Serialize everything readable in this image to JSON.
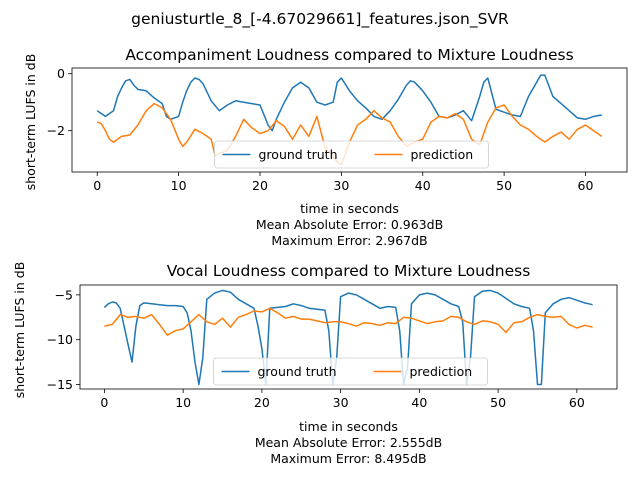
{
  "figure": {
    "suptitle": "geniusturtle_8_[-4.67029661]_features.json_SVR"
  },
  "colors": {
    "ground_truth": "#1f77b4",
    "prediction": "#ff7f0e"
  },
  "chart_data": [
    {
      "type": "line",
      "title": "Accompaniment Loudness compared to Mixture Loudness",
      "xlabel": "time in seconds",
      "ylabel": "short-term LUFS in dB",
      "xlim": [
        -3.1,
        65.1
      ],
      "ylim": [
        -3.45,
        0.2
      ],
      "xticks": [
        "0",
        "10",
        "20",
        "30",
        "40",
        "50",
        "60"
      ],
      "yticks": [
        "0",
        "-2"
      ],
      "legend": {
        "entries": [
          "ground truth",
          "prediction"
        ],
        "location": "lower center"
      },
      "annotations": [
        "Mean Absolute Error: 0.963dB",
        "Maximum Error: 2.967dB"
      ],
      "series": [
        {
          "name": "ground truth",
          "x": [
            0,
            1,
            2,
            2.5,
            3,
            3.5,
            4,
            4.5,
            5,
            6,
            7,
            8,
            8.5,
            9,
            10,
            10.5,
            11,
            11.5,
            12,
            12.5,
            13,
            14,
            15,
            16,
            17,
            18,
            19,
            20,
            21,
            21.5,
            22,
            23,
            24,
            25,
            26,
            27,
            28,
            29,
            29.5,
            30,
            31,
            32,
            33,
            34,
            35,
            36,
            37,
            38,
            38.5,
            39,
            40,
            41,
            42,
            43,
            44,
            45,
            46,
            47,
            47.5,
            48,
            49,
            50,
            51,
            52,
            53,
            54,
            54.5,
            55,
            56,
            57,
            58,
            59,
            60,
            61,
            62
          ],
          "values": [
            -1.3,
            -1.5,
            -1.3,
            -0.8,
            -0.5,
            -0.25,
            -0.2,
            -0.4,
            -0.55,
            -0.6,
            -0.85,
            -1.05,
            -1.5,
            -1.6,
            -1.5,
            -1.0,
            -0.6,
            -0.3,
            -0.15,
            -0.2,
            -0.35,
            -0.95,
            -1.3,
            -1.1,
            -0.95,
            -1.0,
            -1.05,
            -1.1,
            -1.8,
            -2.0,
            -1.6,
            -1.0,
            -0.5,
            -0.3,
            -0.5,
            -1.0,
            -1.1,
            -1.0,
            -0.3,
            -0.15,
            -0.6,
            -0.95,
            -1.2,
            -1.5,
            -1.6,
            -1.3,
            -0.9,
            -0.4,
            -0.25,
            -0.3,
            -0.6,
            -1.0,
            -1.5,
            -1.55,
            -1.45,
            -1.3,
            -1.65,
            -0.8,
            -0.3,
            -0.15,
            -1.25,
            -1.35,
            -1.45,
            -1.5,
            -0.8,
            -0.3,
            -0.05,
            -0.05,
            -0.8,
            -1.05,
            -1.3,
            -1.55,
            -1.6,
            -1.5,
            -1.45
          ]
        },
        {
          "name": "prediction",
          "x": [
            0,
            0.5,
            1,
            1.5,
            2,
            3,
            4,
            5,
            6,
            7,
            8,
            9,
            10,
            10.5,
            11,
            12,
            13,
            14,
            14.5,
            15,
            16,
            17,
            18,
            19,
            20,
            21,
            22,
            23,
            24,
            25,
            26,
            27,
            28,
            29,
            29.5,
            30,
            30.5,
            31,
            32,
            33,
            34,
            35,
            36,
            37,
            38,
            39,
            40,
            41,
            42,
            43,
            44,
            45,
            46,
            47,
            48,
            49,
            50,
            51,
            52,
            53,
            54,
            55,
            56,
            57,
            58,
            59,
            60,
            61,
            62
          ],
          "values": [
            -1.7,
            -1.75,
            -2.0,
            -2.3,
            -2.4,
            -2.2,
            -2.15,
            -1.8,
            -1.3,
            -1.05,
            -1.2,
            -1.6,
            -2.3,
            -2.55,
            -2.4,
            -1.95,
            -2.1,
            -2.3,
            -2.9,
            -2.8,
            -2.7,
            -2.2,
            -1.6,
            -1.9,
            -2.1,
            -2.0,
            -1.65,
            -1.85,
            -2.3,
            -1.8,
            -2.2,
            -1.5,
            -2.6,
            -2.9,
            -3.1,
            -3.2,
            -2.8,
            -2.4,
            -1.8,
            -1.6,
            -1.3,
            -1.55,
            -1.7,
            -2.2,
            -2.55,
            -2.4,
            -2.3,
            -1.7,
            -1.5,
            -1.55,
            -1.4,
            -1.6,
            -2.3,
            -2.5,
            -1.7,
            -1.2,
            -1.1,
            -1.5,
            -1.8,
            -1.95,
            -2.2,
            -2.4,
            -2.2,
            -2.05,
            -2.3,
            -1.95,
            -1.8,
            -2.0,
            -2.2
          ]
        }
      ]
    },
    {
      "type": "line",
      "title": "Vocal Loudness compared to Mixture Loudness",
      "xlabel": "time in seconds",
      "ylabel": "short-term LUFS in dB",
      "xlim": [
        -3.1,
        65.1
      ],
      "ylim": [
        -15.5,
        -3.9
      ],
      "xticks": [
        "0",
        "10",
        "20",
        "30",
        "40",
        "50",
        "60"
      ],
      "yticks": [
        "-5",
        "-10",
        "-15"
      ],
      "legend": {
        "entries": [
          "ground truth",
          "prediction"
        ],
        "location": "lower center"
      },
      "annotations": [
        "Mean Absolute Error: 2.555dB",
        "Maximum Error: 8.495dB"
      ],
      "series": [
        {
          "name": "ground truth",
          "x": [
            0,
            0.5,
            1,
            1.5,
            2,
            2.5,
            3,
            3.5,
            4,
            4.5,
            5,
            6,
            7,
            8,
            9,
            10,
            10.5,
            11,
            11.5,
            12,
            12.5,
            13,
            14,
            15,
            16,
            17,
            18,
            19,
            19.5,
            20,
            20.5,
            21,
            22,
            23,
            24,
            25,
            26,
            27,
            28,
            28.5,
            29,
            29.5,
            30,
            31,
            32,
            33,
            34,
            35,
            36,
            37,
            37.5,
            38,
            38.5,
            39,
            40,
            41,
            42,
            43,
            44,
            45,
            45.5,
            46,
            46.5,
            47,
            48,
            49,
            50,
            51,
            52,
            53,
            54,
            54.5,
            55,
            55.5,
            56,
            57,
            58,
            59,
            60,
            61,
            62
          ],
          "values": [
            -6.4,
            -6.0,
            -5.8,
            -5.9,
            -6.5,
            -8.5,
            -10.5,
            -12.5,
            -8.5,
            -6.2,
            -5.9,
            -6.0,
            -6.1,
            -6.2,
            -6.2,
            -6.3,
            -7.0,
            -9.0,
            -12.5,
            -15.0,
            -12.0,
            -5.5,
            -4.8,
            -4.5,
            -4.7,
            -5.5,
            -6.0,
            -6.5,
            -8.5,
            -11.0,
            -15.0,
            -6.5,
            -6.4,
            -6.3,
            -6.0,
            -6.2,
            -6.5,
            -6.6,
            -6.7,
            -9.0,
            -15.0,
            -12.0,
            -5.2,
            -4.8,
            -5.0,
            -5.5,
            -6.0,
            -6.5,
            -6.3,
            -6.4,
            -9.0,
            -15.0,
            -13.0,
            -6.0,
            -5.0,
            -4.8,
            -5.0,
            -5.5,
            -6.0,
            -6.3,
            -8.0,
            -15.0,
            -12.0,
            -5.2,
            -4.6,
            -4.5,
            -4.8,
            -5.4,
            -6.0,
            -6.3,
            -6.5,
            -9.0,
            -15.0,
            -15.0,
            -7.0,
            -6.0,
            -5.5,
            -5.3,
            -5.6,
            -5.9,
            -6.1
          ]
        },
        {
          "name": "prediction",
          "x": [
            0,
            1,
            2,
            3,
            4,
            5,
            6,
            7,
            8,
            9,
            10,
            11,
            12,
            13,
            14,
            15,
            16,
            17,
            18,
            19,
            20,
            21,
            22,
            23,
            24,
            25,
            26,
            27,
            28,
            29,
            30,
            31,
            32,
            33,
            34,
            35,
            36,
            37,
            38,
            39,
            40,
            41,
            42,
            43,
            44,
            45,
            46,
            47,
            48,
            49,
            50,
            51,
            52,
            53,
            54,
            55,
            56,
            57,
            58,
            59,
            60,
            61,
            62
          ],
          "values": [
            -8.5,
            -8.3,
            -7.2,
            -7.5,
            -7.4,
            -7.6,
            -7.2,
            -8.3,
            -9.5,
            -9.0,
            -8.8,
            -8.0,
            -7.2,
            -8.0,
            -8.3,
            -7.6,
            -8.6,
            -7.5,
            -7.2,
            -6.8,
            -6.9,
            -6.5,
            -7.0,
            -7.6,
            -7.4,
            -7.7,
            -7.7,
            -7.9,
            -8.1,
            -8.0,
            -8.0,
            -8.2,
            -8.5,
            -8.1,
            -8.2,
            -8.4,
            -8.1,
            -8.2,
            -7.5,
            -7.6,
            -7.9,
            -8.2,
            -8.0,
            -7.9,
            -7.4,
            -7.5,
            -8.0,
            -8.3,
            -7.9,
            -8.0,
            -8.3,
            -9.2,
            -8.1,
            -8.0,
            -7.5,
            -7.2,
            -7.4,
            -7.5,
            -7.4,
            -8.3,
            -8.7,
            -8.4,
            -8.6
          ]
        }
      ]
    }
  ]
}
